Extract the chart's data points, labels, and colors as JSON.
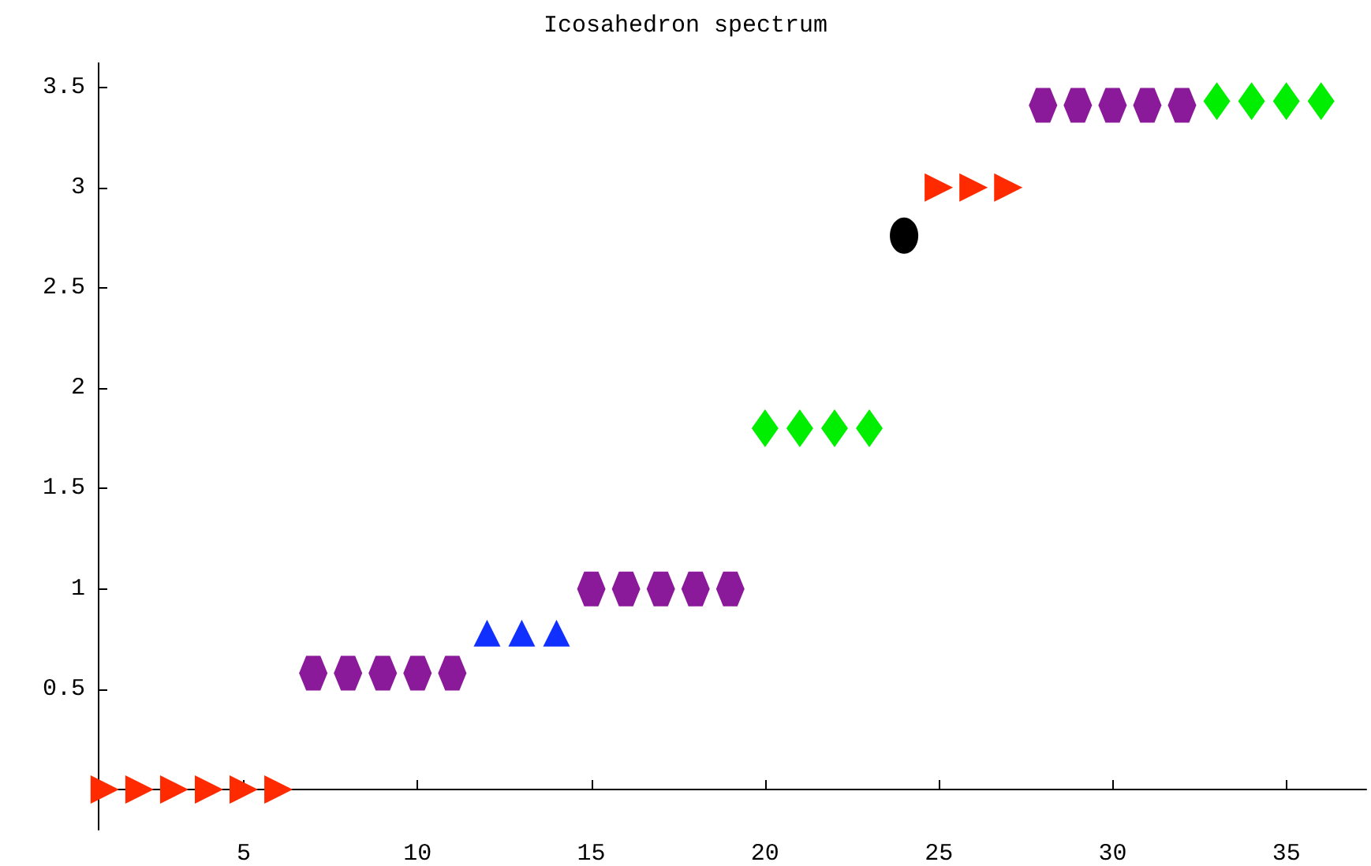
{
  "chart_data": {
    "type": "scatter",
    "title": "Icosahedron spectrum",
    "xlim": [
      0.8,
      37.3
    ],
    "ylim": [
      -0.2,
      3.62
    ],
    "xticks": [
      5,
      10,
      15,
      20,
      25,
      30,
      35
    ],
    "yticks": [
      0.5,
      1,
      1.5,
      2,
      2.5,
      3,
      3.5
    ],
    "grid": false,
    "series": [
      {
        "color": "#ff2a00",
        "marker": "triangle-right",
        "x": [
          1,
          2,
          3,
          4,
          5,
          6
        ],
        "values": [
          0,
          0,
          0,
          0,
          0,
          0
        ]
      },
      {
        "color": "#8b1a9a",
        "x": [
          7,
          8,
          9,
          10,
          11
        ],
        "values": [
          0.58,
          0.58,
          0.58,
          0.58,
          0.58
        ]
      },
      {
        "color": "#1030ff",
        "marker": "triangle",
        "x": [
          12,
          13,
          14
        ],
        "values": [
          0.78,
          0.78,
          0.78
        ]
      },
      {
        "color": "#8b1a9a",
        "x": [
          15,
          16,
          17,
          18,
          19
        ],
        "values": [
          1,
          1,
          1,
          1,
          1
        ]
      },
      {
        "color": "#00ee00",
        "marker": "diamond",
        "x": [
          20,
          21,
          22,
          23
        ],
        "values": [
          1.8,
          1.8,
          1.8,
          1.8
        ]
      },
      {
        "color": "#000000",
        "marker": "circle",
        "x": [
          24
        ],
        "values": [
          2.76
        ]
      },
      {
        "color": "#ff2a00",
        "marker": "triangle-right",
        "x": [
          25,
          26,
          27
        ],
        "values": [
          3,
          3,
          3
        ]
      },
      {
        "color": "#8b1a9a",
        "x": [
          28,
          29,
          30,
          31,
          32
        ],
        "values": [
          3.41,
          3.41,
          3.41,
          3.41,
          3.41
        ]
      },
      {
        "color": "#00ee00",
        "marker": "diamond",
        "x": [
          33,
          34,
          35,
          36
        ],
        "values": [
          3.43,
          3.43,
          3.43,
          3.43
        ]
      }
    ]
  }
}
